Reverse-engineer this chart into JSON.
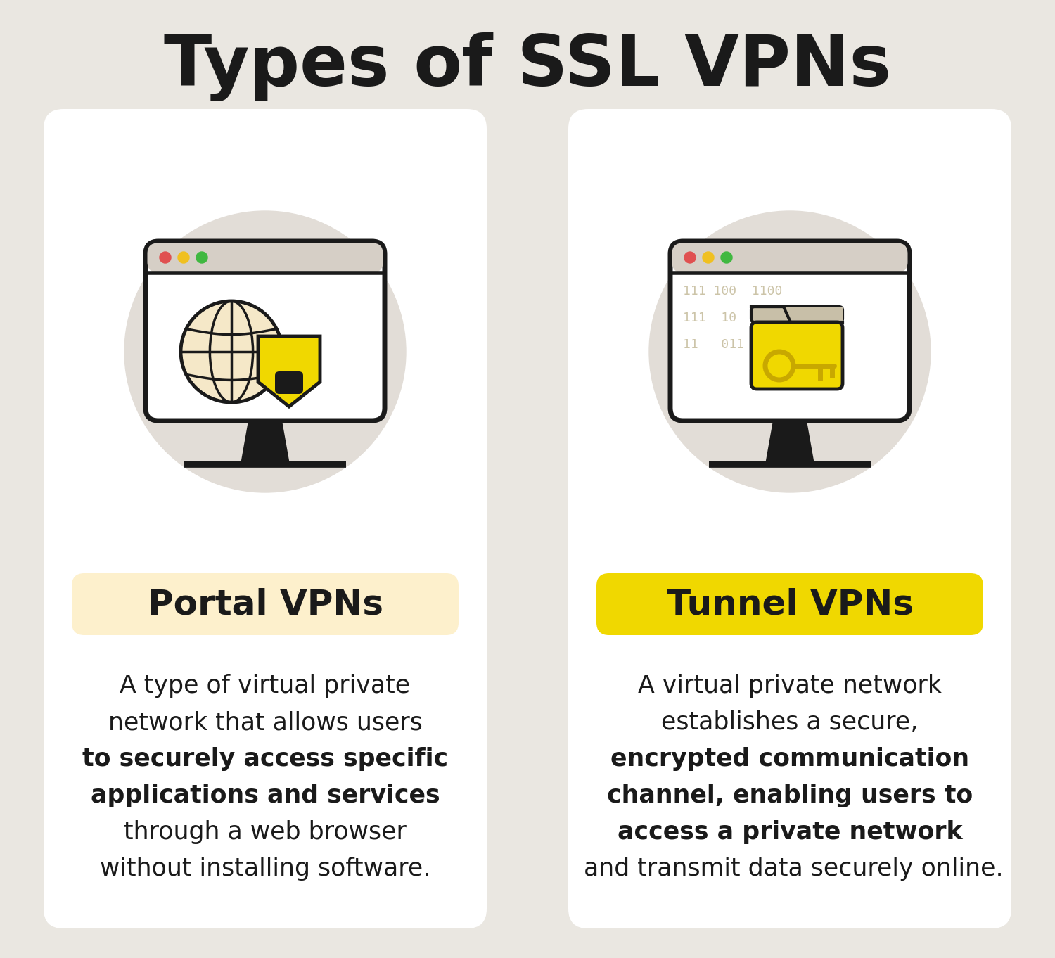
{
  "title": "Types of SSL VPNs",
  "bg_color": "#eae7e1",
  "card_bg": "#ffffff",
  "panel1": {
    "label": "Portal VPNs",
    "label_bg": "#fdf0cc",
    "label_text_color": "#1a1a1a",
    "icon_circle_color": "#e2ddd7",
    "monitor_color": "#1a1a1a",
    "screen_bg": "#ffffff",
    "titlebar_bg": "#d6cfc6"
  },
  "panel2": {
    "label": "Tunnel VPNs",
    "label_bg": "#f0d800",
    "label_text_color": "#1a1a1a",
    "icon_circle_color": "#e2ddd7",
    "monitor_color": "#1a1a1a",
    "screen_bg": "#ffffff",
    "titlebar_bg": "#d6cfc6"
  },
  "globe_fill": "#f5e8c8",
  "globe_stroke": "#1a1a1a",
  "shield_fill": "#f0d800",
  "shield_stroke": "#1a1a1a",
  "folder_fill": "#f0d800",
  "folder_tab_fill": "#c8b800",
  "folder_stroke": "#1a1a1a",
  "key_color": "#c8a800",
  "binary_color": "#ccc4a8",
  "dot_red": "#e05050",
  "dot_yellow": "#f0c020",
  "dot_green": "#40b840"
}
